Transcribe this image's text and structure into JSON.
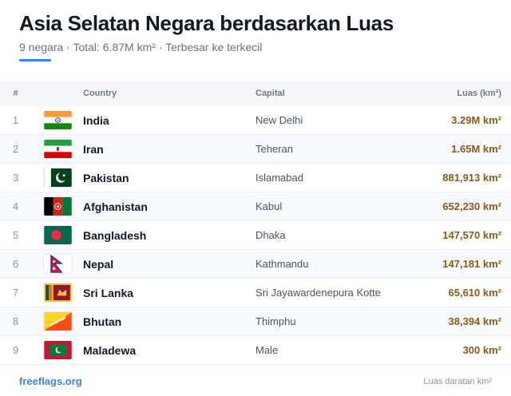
{
  "header": {
    "title": "Asia Selatan Negara berdasarkan Luas",
    "subtitle": "9 negara · Total: 6.87M km² · Terbesar ke terkecil"
  },
  "table": {
    "columns": {
      "num": "#",
      "country": "Country",
      "capital": "Capital",
      "area": "Luas (km²)"
    },
    "rows": [
      {
        "num": "1",
        "country": "India",
        "capital": "New Delhi",
        "area": "3.29M km²",
        "flag": "flag-india-icon"
      },
      {
        "num": "2",
        "country": "Iran",
        "capital": "Teheran",
        "area": "1.65M km²",
        "flag": "flag-iran-icon"
      },
      {
        "num": "3",
        "country": "Pakistan",
        "capital": "Islamabad",
        "area": "881,913 km²",
        "flag": "flag-pakistan-icon"
      },
      {
        "num": "4",
        "country": "Afghanistan",
        "capital": "Kabul",
        "area": "652,230 km²",
        "flag": "flag-afghanistan-icon"
      },
      {
        "num": "5",
        "country": "Bangladesh",
        "capital": "Dhaka",
        "area": "147,570 km²",
        "flag": "flag-bangladesh-icon"
      },
      {
        "num": "6",
        "country": "Nepal",
        "capital": "Kathmandu",
        "area": "147,181 km²",
        "flag": "flag-nepal-icon"
      },
      {
        "num": "7",
        "country": "Sri Lanka",
        "capital": "Sri Jayawardenepura Kotte",
        "area": "65,610 km²",
        "flag": "flag-sri-lanka-icon"
      },
      {
        "num": "8",
        "country": "Bhutan",
        "capital": "Thimphu",
        "area": "38,394 km²",
        "flag": "flag-bhutan-icon"
      },
      {
        "num": "9",
        "country": "Maladewa",
        "capital": "Male",
        "area": "300 km²",
        "flag": "flag-maldives-icon"
      }
    ]
  },
  "footer": {
    "link": "freeflags.org",
    "note": "Luas daratan km²"
  },
  "colors": {
    "accent": "#3b82f6",
    "area_text": "#8a5a1c"
  }
}
